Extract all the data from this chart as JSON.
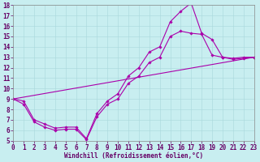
{
  "bg_color": "#c8eef0",
  "grid_color": "#a8d8dc",
  "line_color": "#aa00aa",
  "xlabel": "Windchill (Refroidissement éolien,°C)",
  "xlim": [
    0,
    23
  ],
  "ylim": [
    5,
    18
  ],
  "xticks": [
    0,
    1,
    2,
    3,
    4,
    5,
    6,
    7,
    8,
    9,
    10,
    11,
    12,
    13,
    14,
    15,
    16,
    17,
    18,
    19,
    20,
    21,
    22,
    23
  ],
  "yticks": [
    5,
    6,
    7,
    8,
    9,
    10,
    11,
    12,
    13,
    14,
    15,
    16,
    17,
    18
  ],
  "font_size": 5.5,
  "marker": "D",
  "marker_size": 1.8,
  "line_width": 0.8,
  "line1_x": [
    0,
    1,
    2,
    3,
    4,
    5,
    6,
    7,
    8,
    9,
    10,
    11,
    12,
    13,
    14,
    15,
    16,
    17,
    18,
    19,
    20,
    21,
    22,
    23
  ],
  "line1_y": [
    9.0,
    8.8,
    7.0,
    6.6,
    6.2,
    6.3,
    6.3,
    5.2,
    7.6,
    8.8,
    9.5,
    11.2,
    12.0,
    13.5,
    14.0,
    16.4,
    17.4,
    18.2,
    15.3,
    14.7,
    13.0,
    12.9,
    13.0,
    13.0
  ],
  "line2_x": [
    0,
    1,
    2,
    3,
    4,
    5,
    6,
    7,
    8,
    9,
    10,
    11,
    12,
    13,
    14,
    15,
    16,
    17,
    18,
    19,
    20,
    21,
    22,
    23
  ],
  "line2_y": [
    9.0,
    8.5,
    6.8,
    6.3,
    6.0,
    6.1,
    6.1,
    5.1,
    7.3,
    8.5,
    9.0,
    10.5,
    11.2,
    12.5,
    13.0,
    15.0,
    15.5,
    15.3,
    15.2,
    13.2,
    13.0,
    12.8,
    12.9,
    13.0
  ],
  "line3_x": [
    0,
    23
  ],
  "line3_y": [
    9.0,
    13.0
  ]
}
